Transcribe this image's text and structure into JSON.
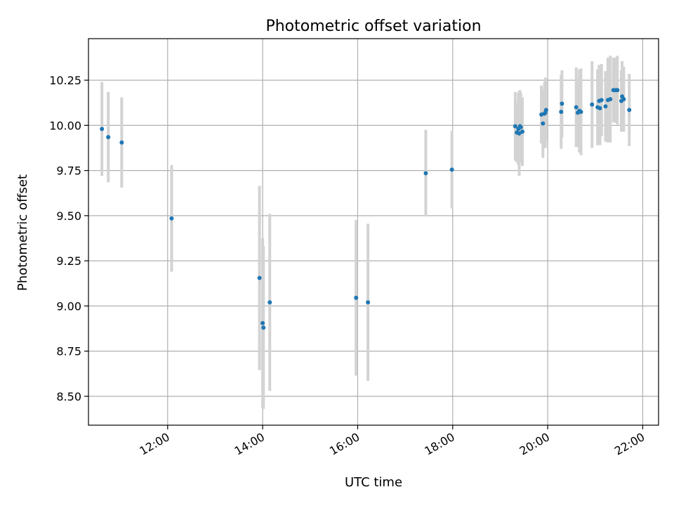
{
  "chart_data": {
    "type": "scatter",
    "title": "Photometric offset variation",
    "xlabel": "UTC time",
    "ylabel": "Photometric offset",
    "x_ticks": [
      "12:00",
      "14:00",
      "16:00",
      "18:00",
      "20:00",
      "22:00"
    ],
    "y_ticks": [
      "8.50",
      "8.75",
      "9.00",
      "9.25",
      "9.50",
      "9.75",
      "10.00",
      "10.25"
    ],
    "xlim": [
      "10:20",
      "22:20"
    ],
    "ylim": [
      8.34,
      10.48
    ],
    "grid": true,
    "colors": {
      "points": "#1f77b4",
      "errorbars": "#d3d3d3",
      "grid": "#b0b0b0"
    },
    "points": [
      {
        "x": "10:37",
        "y": 9.98,
        "err": 0.26
      },
      {
        "x": "10:45",
        "y": 9.935,
        "err": 0.25
      },
      {
        "x": "11:02",
        "y": 9.905,
        "err": 0.25
      },
      {
        "x": "12:05",
        "y": 9.485,
        "err": 0.295
      },
      {
        "x": "13:56",
        "y": 9.155,
        "err": 0.51
      },
      {
        "x": "14:00",
        "y": 8.905,
        "err": 0.47
      },
      {
        "x": "14:01",
        "y": 8.88,
        "err": 0.45
      },
      {
        "x": "14:09",
        "y": 9.02,
        "err": 0.49
      },
      {
        "x": "15:58",
        "y": 9.045,
        "err": 0.43
      },
      {
        "x": "16:13",
        "y": 9.02,
        "err": 0.435
      },
      {
        "x": "17:26",
        "y": 9.735,
        "err": 0.24
      },
      {
        "x": "17:59",
        "y": 9.755,
        "err": 0.215
      },
      {
        "x": "19:19",
        "y": 9.995,
        "err": 0.19
      },
      {
        "x": "19:21",
        "y": 9.96,
        "err": 0.165
      },
      {
        "x": "19:23",
        "y": 9.98,
        "err": 0.2
      },
      {
        "x": "19:24",
        "y": 9.955,
        "err": 0.235
      },
      {
        "x": "19:25",
        "y": 9.995,
        "err": 0.2
      },
      {
        "x": "19:26",
        "y": 9.99,
        "err": 0.19
      },
      {
        "x": "19:28",
        "y": 9.965,
        "err": 0.19
      },
      {
        "x": "19:52",
        "y": 10.06,
        "err": 0.16
      },
      {
        "x": "19:54",
        "y": 10.01,
        "err": 0.19
      },
      {
        "x": "19:56",
        "y": 10.065,
        "err": 0.175
      },
      {
        "x": "19:57",
        "y": 10.07,
        "err": 0.195
      },
      {
        "x": "19:58",
        "y": 10.085,
        "err": 0.17
      },
      {
        "x": "20:17",
        "y": 10.075,
        "err": 0.205
      },
      {
        "x": "20:18",
        "y": 10.12,
        "err": 0.185
      },
      {
        "x": "20:36",
        "y": 10.1,
        "err": 0.22
      },
      {
        "x": "20:38",
        "y": 10.07,
        "err": 0.19
      },
      {
        "x": "20:40",
        "y": 10.08,
        "err": 0.23
      },
      {
        "x": "20:42",
        "y": 10.075,
        "err": 0.24
      },
      {
        "x": "20:56",
        "y": 10.115,
        "err": 0.24
      },
      {
        "x": "21:03",
        "y": 10.1,
        "err": 0.21
      },
      {
        "x": "21:05",
        "y": 10.135,
        "err": 0.2
      },
      {
        "x": "21:06",
        "y": 10.095,
        "err": 0.205
      },
      {
        "x": "21:08",
        "y": 10.14,
        "err": 0.2
      },
      {
        "x": "21:13",
        "y": 10.105,
        "err": 0.195
      },
      {
        "x": "21:16",
        "y": 10.14,
        "err": 0.235
      },
      {
        "x": "21:19",
        "y": 10.145,
        "err": 0.24
      },
      {
        "x": "21:23",
        "y": 10.195,
        "err": 0.18
      },
      {
        "x": "21:26",
        "y": 10.195,
        "err": 0.18
      },
      {
        "x": "21:28",
        "y": 10.195,
        "err": 0.19
      },
      {
        "x": "21:33",
        "y": 10.135,
        "err": 0.17
      },
      {
        "x": "21:34",
        "y": 10.16,
        "err": 0.195
      },
      {
        "x": "21:36",
        "y": 10.145,
        "err": 0.18
      },
      {
        "x": "21:43",
        "y": 10.085,
        "err": 0.2
      }
    ]
  }
}
